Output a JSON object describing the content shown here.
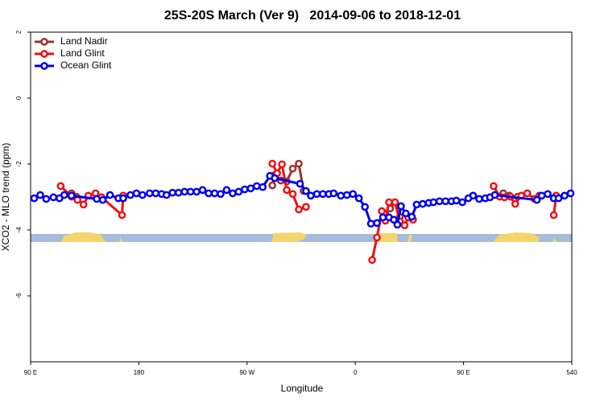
{
  "chart_data": {
    "type": "line",
    "title": "25S-20S March (Ver 9)   2014-09-06 to 2018-12-01",
    "x_label": "Longitude",
    "y_label": "XCO2 - MLO trend (ppm)",
    "xlim": [
      90,
      540
    ],
    "xticks": [
      {
        "value": 90,
        "label": "90 E"
      },
      180,
      {
        "value": 270,
        "label": "90 W"
      },
      {
        "value": 360,
        "label": "0"
      },
      {
        "value": 450,
        "label": "90 E"
      },
      540
    ],
    "ylim": [
      -8,
      2
    ],
    "yticks": [
      -6,
      -4,
      -2,
      0,
      2
    ],
    "legend": "top-left",
    "series": [
      {
        "name": "Land Nadir",
        "color": "#a0302c",
        "x": [
          124,
          128,
          150,
          null,
          291,
          293,
          298,
          303,
          308,
          313,
          317,
          null,
          385,
          389,
          393,
          397,
          null,
          483,
          488,
          495
        ],
        "values": [
          -2.89,
          -2.99,
          -3.06,
          null,
          -2.65,
          -2.33,
          -2.5,
          -2.53,
          -2.14,
          -1.99,
          -2.82,
          null,
          -3.5,
          -3.35,
          -3.16,
          -3.6,
          null,
          -2.89,
          -2.96,
          -2.99
        ]
      },
      {
        "name": "Land Glint",
        "color": "#ee1111",
        "x": [
          115,
          124,
          129,
          134,
          138,
          144,
          149,
          166,
          167,
          null,
          291,
          295,
          299,
          303,
          308,
          313,
          319,
          null,
          374,
          378,
          382,
          385,
          388,
          393,
          397,
          401,
          404,
          408,
          null,
          475,
          480,
          484,
          489,
          493,
          498,
          503,
          509,
          513,
          null,
          525,
          527
        ],
        "values": [
          -2.67,
          -2.99,
          -3.09,
          -3.23,
          -2.96,
          -2.89,
          -3.01,
          -3.55,
          -2.96,
          null,
          -1.99,
          -2.28,
          -2.01,
          -2.79,
          -2.91,
          -3.38,
          -3.3,
          null,
          -4.91,
          -4.23,
          -3.43,
          -3.72,
          -3.16,
          -3.16,
          -3.74,
          -3.86,
          -3.62,
          -3.69,
          null,
          -2.67,
          -2.99,
          -3.01,
          -2.99,
          -3.21,
          -2.96,
          -2.89,
          -3.06,
          -2.96,
          null,
          -3.55,
          -2.96
        ]
      },
      {
        "name": "Ocean Glint",
        "color": "#0000ee",
        "x": [
          93,
          98,
          103,
          109,
          114,
          118,
          124,
          145,
          150,
          156,
          163,
          167,
          173,
          178,
          183,
          189,
          194,
          199,
          203,
          208,
          213,
          218,
          223,
          228,
          233,
          238,
          243,
          248,
          253,
          258,
          263,
          268,
          273,
          278,
          283,
          289,
          293,
          314,
          319,
          323,
          328,
          333,
          338,
          342,
          348,
          353,
          358,
          363,
          368,
          373,
          378,
          383,
          388,
          392,
          395,
          398,
          402,
          407,
          411,
          416,
          421,
          425,
          430,
          435,
          440,
          444,
          449,
          454,
          458,
          463,
          468,
          472,
          476,
          511,
          515,
          520,
          525,
          529,
          534,
          539
        ],
        "values": [
          -3.04,
          -2.94,
          -3.06,
          -3.01,
          -3.04,
          -2.94,
          -2.96,
          -3.06,
          -3.09,
          -2.94,
          -3.04,
          -3.04,
          -2.94,
          -2.89,
          -2.94,
          -2.89,
          -2.89,
          -2.91,
          -2.94,
          -2.87,
          -2.87,
          -2.84,
          -2.84,
          -2.84,
          -2.79,
          -2.89,
          -2.89,
          -2.91,
          -2.79,
          -2.89,
          -2.84,
          -2.77,
          -2.74,
          -2.67,
          -2.7,
          -2.36,
          -2.43,
          -2.6,
          -2.82,
          -2.96,
          -2.91,
          -2.91,
          -2.91,
          -2.89,
          -2.96,
          -2.94,
          -2.91,
          -3.04,
          -3.3,
          -3.81,
          -3.79,
          -3.62,
          -3.62,
          -3.69,
          -3.84,
          -3.28,
          -3.5,
          -3.6,
          -3.23,
          -3.21,
          -3.18,
          -3.16,
          -3.13,
          -3.13,
          -3.13,
          -3.11,
          -3.16,
          -3.04,
          -2.96,
          -3.06,
          -3.04,
          -3.01,
          -2.94,
          -3.09,
          -2.96,
          -2.91,
          -3.04,
          -3.04,
          -2.96,
          -2.89
        ]
      }
    ]
  }
}
